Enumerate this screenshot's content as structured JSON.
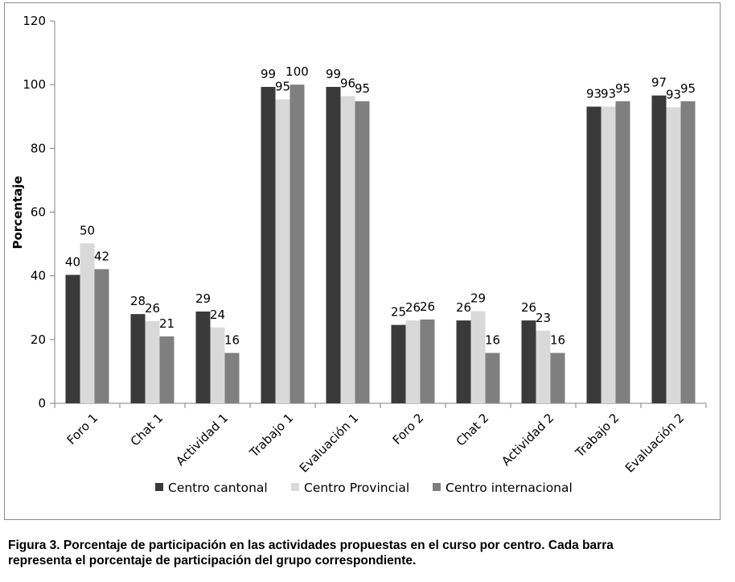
{
  "chart_data": {
    "type": "bar",
    "title": "",
    "xlabel": "",
    "ylabel": "Porcentaje",
    "ylim": [
      0,
      120
    ],
    "yticks": [
      0,
      20,
      40,
      60,
      80,
      100,
      120
    ],
    "grid": false,
    "legend_position": "bottom",
    "categories": [
      "Foro 1",
      "Chat 1",
      "Actividad 1",
      "Trabajo 1",
      "Evaluación 1",
      "Foro 2",
      "Chat 2",
      "Actividad 2",
      "Trabajo 2",
      "Evaluación 2"
    ],
    "series": [
      {
        "name": "Centro cantonal",
        "color": "#3a3a3a",
        "values": [
          40.3,
          28.0,
          28.8,
          99.3,
          99.3,
          24.6,
          26.0,
          26.0,
          93.1,
          96.6
        ],
        "labels": [
          "40",
          "28",
          "29",
          "99",
          "99",
          "25",
          "26",
          "26",
          "93",
          "97"
        ]
      },
      {
        "name": "Centro Provincial",
        "color": "#d9d9d9",
        "values": [
          50.2,
          25.8,
          23.8,
          95.4,
          96.4,
          26.0,
          28.9,
          22.8,
          93.1,
          92.9
        ],
        "labels": [
          "50",
          "26",
          "24",
          "95",
          "96",
          "26",
          "29",
          "23",
          "93",
          "93"
        ]
      },
      {
        "name": "Centro internacional",
        "color": "#7f7f7f",
        "values": [
          42.1,
          21.0,
          15.8,
          100.0,
          94.8,
          26.3,
          15.8,
          15.8,
          94.8,
          94.8
        ],
        "labels": [
          "42",
          "21",
          "16",
          "100",
          "95",
          "26",
          "16",
          "16",
          "95",
          "95"
        ]
      }
    ]
  },
  "caption": {
    "line1": "Figura 3. Porcentaje de participación en las actividades propuestas en el curso por centro. Cada barra",
    "line2": "representa el porcentaje de participación del grupo correspondiente."
  }
}
